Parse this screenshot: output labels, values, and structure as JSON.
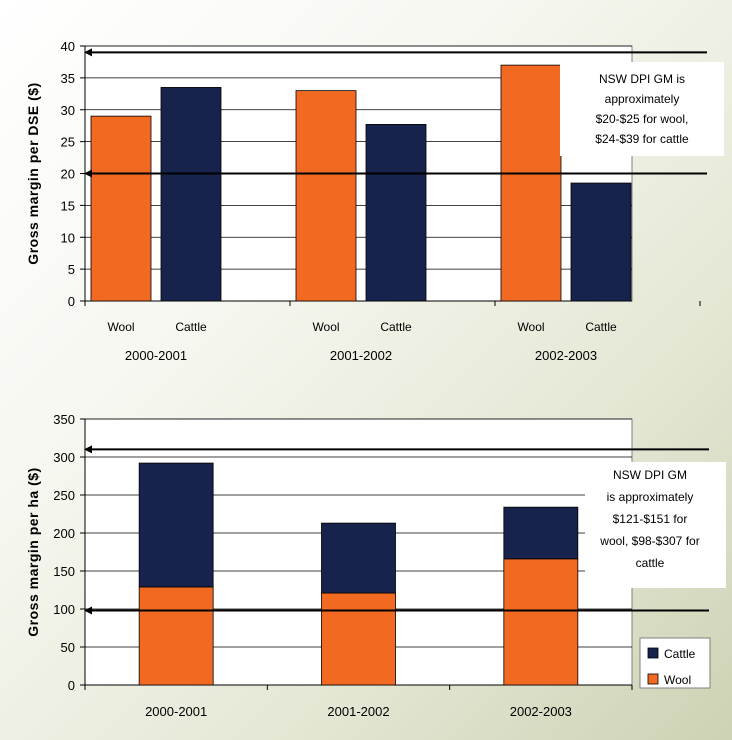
{
  "chart_data": [
    {
      "type": "bar",
      "ylabel": "Gross margin per DSE ($)",
      "ylim": [
        0,
        40
      ],
      "yticks": [
        0,
        5,
        10,
        15,
        20,
        25,
        30,
        35,
        40
      ],
      "groups": [
        "2000-2001",
        "2001-2002",
        "2002-2003"
      ],
      "bars": [
        {
          "group": "2000-2001",
          "label": "Wool",
          "value": 29,
          "color": "#f26a21"
        },
        {
          "group": "2000-2001",
          "label": "Cattle",
          "value": 33.5,
          "color": "#17234d"
        },
        {
          "group": "2001-2002",
          "label": "Wool",
          "value": 33,
          "color": "#f26a21"
        },
        {
          "group": "2001-2002",
          "label": "Cattle",
          "value": 27.7,
          "color": "#17234d"
        },
        {
          "group": "2002-2003",
          "label": "Wool",
          "value": 37,
          "color": "#f26a21"
        },
        {
          "group": "2002-2003",
          "label": "Cattle",
          "value": 18.5,
          "color": "#17234d"
        }
      ],
      "reference_lines": [
        20,
        39
      ],
      "annotation": [
        "NSW DPI GM is",
        "approximately",
        "$20-$25 for wool,",
        "$24-$39 for cattle"
      ],
      "grid": true
    },
    {
      "type": "stacked-bar",
      "ylabel": "Gross margin per ha ($)",
      "ylim": [
        0,
        350
      ],
      "yticks": [
        0,
        50,
        100,
        150,
        200,
        250,
        300,
        350
      ],
      "categories": [
        "2000-2001",
        "2001-2002",
        "2002-2003"
      ],
      "series": [
        {
          "name": "Wool",
          "values": [
            129,
            121,
            166
          ],
          "color": "#f26a21"
        },
        {
          "name": "Cattle",
          "values": [
            163,
            92,
            68
          ],
          "color": "#17234d"
        }
      ],
      "reference_lines": [
        98,
        310
      ],
      "annotation": [
        "NSW DPI GM",
        "is approximately",
        "$121-$151 for",
        "wool, $98-$307 for",
        "cattle"
      ],
      "legend": [
        "Cattle",
        "Wool"
      ],
      "legend_position": "bottom-right",
      "grid": true
    }
  ]
}
